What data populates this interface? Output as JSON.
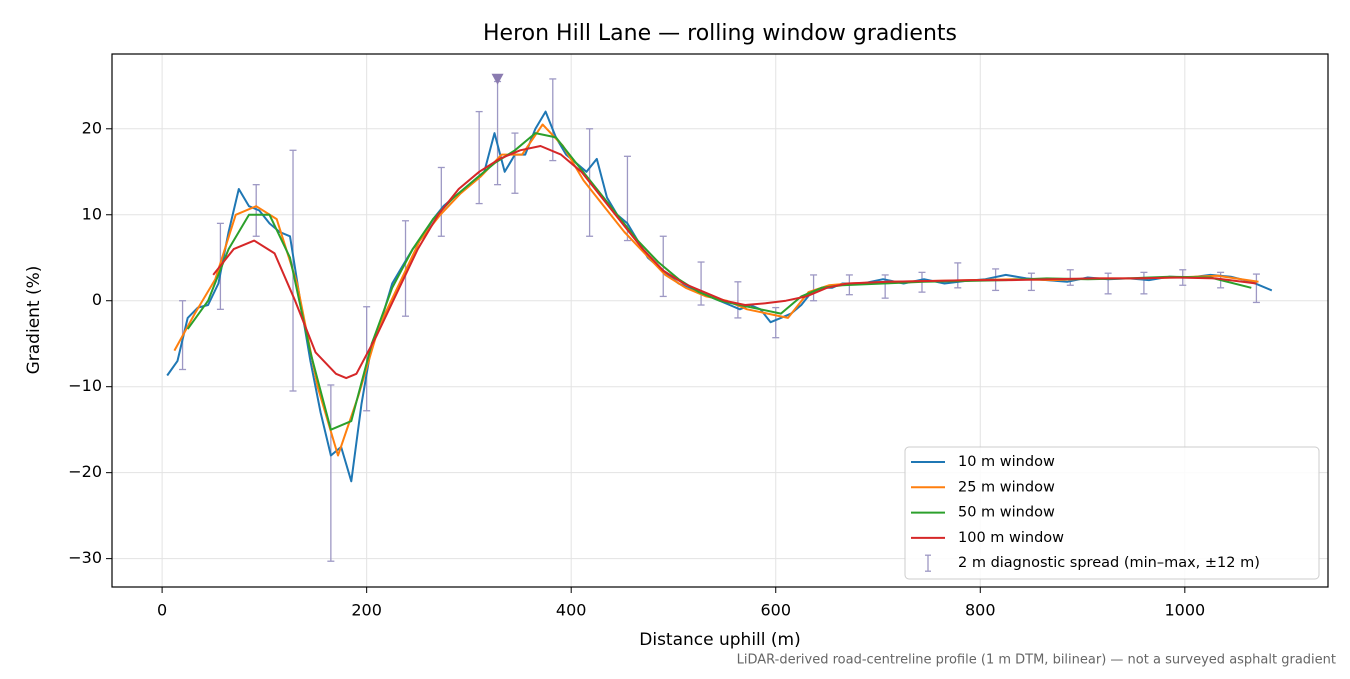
{
  "chart_data": {
    "type": "line",
    "title": "Heron Hill Lane — rolling window gradients",
    "x_label": "Distance uphill (m)",
    "y_label": "Gradient (%)",
    "footnote": "LiDAR-derived road-centreline profile (1 m DTM, bilinear) — not a surveyed asphalt gradient",
    "xlim": [
      -49,
      1140
    ],
    "ylim": [
      -33.3,
      28.7
    ],
    "xticks": [
      0,
      200,
      400,
      600,
      800,
      1000
    ],
    "yticks": [
      {
        "value": -30,
        "label": "−30"
      },
      {
        "value": -20,
        "label": "−20"
      },
      {
        "value": -10,
        "label": "−10"
      },
      0,
      10,
      20
    ],
    "grid": true,
    "legend": "lower right",
    "series": [
      {
        "name": "10 m window",
        "color": "#1f77b4",
        "x": [
          5,
          15,
          25,
          35,
          45,
          55,
          65,
          75,
          85,
          95,
          105,
          115,
          125,
          135,
          145,
          155,
          165,
          175,
          185,
          195,
          205,
          215,
          225,
          235,
          245,
          255,
          265,
          275,
          285,
          295,
          305,
          315,
          325,
          335,
          345,
          355,
          365,
          375,
          385,
          395,
          405,
          415,
          425,
          435,
          445,
          455,
          465,
          475,
          485,
          495,
          505,
          515,
          525,
          535,
          545,
          555,
          565,
          575,
          585,
          595,
          605,
          615,
          625,
          635,
          645,
          655,
          665,
          685,
          705,
          725,
          745,
          765,
          785,
          805,
          825,
          845,
          865,
          885,
          905,
          925,
          945,
          965,
          985,
          1005,
          1025,
          1045,
          1065,
          1085
        ],
        "values": [
          -8.7,
          -7,
          -2,
          -0.8,
          -0.5,
          2,
          8,
          13,
          11,
          10.5,
          9,
          8,
          7.5,
          0,
          -7,
          -13,
          -18,
          -17,
          -21,
          -12,
          -5,
          -2,
          2,
          4,
          6,
          7.5,
          9.5,
          11,
          12,
          13,
          14,
          15,
          19.5,
          15,
          17,
          17,
          20,
          22,
          19,
          17,
          16,
          15,
          16.5,
          12,
          10,
          9,
          7,
          5,
          4,
          3,
          2,
          1.5,
          1,
          0.5,
          0,
          -0.5,
          -1,
          -0.5,
          -1,
          -2.5,
          -2,
          -1.5,
          -0.5,
          1,
          1.5,
          1.5,
          2,
          2,
          2.5,
          2,
          2.5,
          2,
          2.3,
          2.5,
          3,
          2.6,
          2.4,
          2.2,
          2.7,
          2.5,
          2.6,
          2.4,
          2.8,
          2.7,
          3,
          2.8,
          2.2,
          1.2
        ]
      },
      {
        "name": "25 m window",
        "color": "#ff7f0e",
        "x": [
          12,
          32,
          52,
          72,
          92,
          112,
          132,
          152,
          172,
          192,
          212,
          232,
          252,
          272,
          292,
          312,
          332,
          352,
          372,
          392,
          412,
          432,
          452,
          472,
          492,
          512,
          532,
          552,
          572,
          592,
          612,
          632,
          652,
          672,
          712,
          752,
          792,
          832,
          872,
          912,
          952,
          992,
          1032,
          1072
        ],
        "values": [
          -5.8,
          -1.5,
          2.5,
          10,
          11,
          9.5,
          2,
          -10,
          -18,
          -11,
          -3,
          2,
          7,
          10,
          12.5,
          14.5,
          17,
          17,
          20.5,
          18,
          14,
          11,
          8,
          5.5,
          3,
          1.5,
          0.5,
          0,
          -1,
          -1.5,
          -2,
          1,
          1.8,
          2,
          2.2,
          2.3,
          2.4,
          2.5,
          2.4,
          2.6,
          2.6,
          2.7,
          2.9,
          2.2
        ]
      },
      {
        "name": "50 m window",
        "color": "#2ca02c",
        "x": [
          25,
          45,
          65,
          85,
          105,
          125,
          145,
          165,
          185,
          205,
          225,
          245,
          265,
          285,
          305,
          325,
          345,
          365,
          385,
          405,
          425,
          445,
          465,
          485,
          505,
          525,
          545,
          565,
          585,
          605,
          625,
          645,
          665,
          705,
          745,
          785,
          825,
          865,
          905,
          945,
          985,
          1025,
          1065
        ],
        "values": [
          -3.3,
          0,
          6,
          10,
          10,
          5,
          -6,
          -15,
          -14,
          -5,
          1.5,
          6,
          9.5,
          12,
          14,
          16,
          17.5,
          19.5,
          19,
          16,
          13,
          10,
          7,
          4.5,
          2.5,
          1,
          0,
          -0.5,
          -1,
          -1.5,
          0.5,
          1.5,
          1.8,
          2,
          2.2,
          2.3,
          2.4,
          2.6,
          2.5,
          2.6,
          2.8,
          2.7,
          1.5
        ]
      },
      {
        "name": "100 m window",
        "color": "#d62728",
        "x": [
          50,
          70,
          90,
          110,
          130,
          150,
          170,
          180,
          190,
          210,
          230,
          250,
          270,
          290,
          310,
          330,
          350,
          370,
          390,
          410,
          430,
          450,
          470,
          490,
          510,
          530,
          550,
          570,
          590,
          610,
          630,
          650,
          670,
          710,
          750,
          790,
          830,
          870,
          910,
          950,
          990,
          1030,
          1070
        ],
        "values": [
          3,
          6,
          7,
          5.5,
          0,
          -6,
          -8.5,
          -9,
          -8.5,
          -4,
          1,
          6,
          10,
          13,
          15,
          16.5,
          17.5,
          18,
          17,
          15,
          12,
          9,
          6,
          3.5,
          2,
          1,
          0,
          -0.5,
          -0.3,
          0,
          0.5,
          1.5,
          2,
          2.2,
          2.3,
          2.4,
          2.4,
          2.5,
          2.6,
          2.6,
          2.7,
          2.6,
          2
        ]
      }
    ],
    "error_bars": {
      "name": "2 m diagnostic spread (min–max, ±12 m)",
      "color": "#9d98c4",
      "x": [
        20,
        57,
        92,
        128,
        165,
        200,
        238,
        273,
        310,
        328,
        345,
        382,
        418,
        455,
        490,
        527,
        563,
        600,
        637,
        672,
        707,
        743,
        778,
        815,
        850,
        888,
        925,
        960,
        998,
        1035,
        1070
      ],
      "low": [
        -8,
        -1,
        7.5,
        -10.5,
        -30.3,
        -12.8,
        -1.8,
        7.5,
        11.3,
        13.5,
        12.5,
        16.3,
        7.5,
        7,
        0.5,
        -0.5,
        -2,
        -4.3,
        0,
        0.7,
        0.3,
        1,
        1.5,
        1.2,
        1.2,
        1.8,
        0.8,
        0.8,
        1.8,
        1.5,
        -0.2
      ],
      "high": [
        0,
        9,
        13.5,
        17.5,
        -9.8,
        -0.7,
        9.3,
        15.5,
        22,
        25.5,
        19.5,
        25.8,
        20,
        16.8,
        7.5,
        4.5,
        2.2,
        -0.8,
        3,
        3,
        3,
        3.3,
        4.4,
        3.7,
        3.2,
        3.6,
        3.2,
        3.3,
        3.6,
        3.3,
        3.1
      ]
    },
    "peak_marker": {
      "x": 328,
      "y": 25.7,
      "color": "#8a7bb0"
    }
  }
}
